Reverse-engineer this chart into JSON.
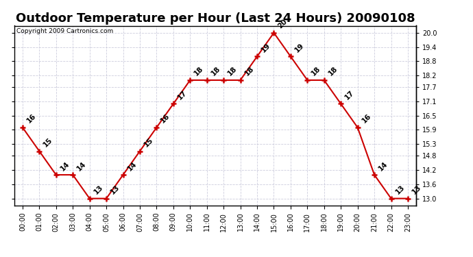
{
  "title": "Outdoor Temperature per Hour (Last 24 Hours) 20090108",
  "copyright": "Copyright 2009 Cartronics.com",
  "hours": [
    "00:00",
    "01:00",
    "02:00",
    "03:00",
    "04:00",
    "05:00",
    "06:00",
    "07:00",
    "08:00",
    "09:00",
    "10:00",
    "11:00",
    "12:00",
    "13:00",
    "14:00",
    "15:00",
    "16:00",
    "17:00",
    "18:00",
    "19:00",
    "20:00",
    "21:00",
    "22:00",
    "23:00"
  ],
  "values": [
    16,
    15,
    14,
    14,
    13,
    13,
    14,
    15,
    16,
    17,
    18,
    18,
    18,
    18,
    19,
    20,
    19,
    18,
    18,
    17,
    16,
    14,
    13,
    13
  ],
  "line_color": "#cc0000",
  "marker_color": "#cc0000",
  "grid_color": "#ccccdd",
  "bg_color": "#ffffff",
  "ylim_min": 12.7,
  "ylim_max": 20.3,
  "yticks": [
    13.0,
    13.6,
    14.2,
    14.8,
    15.3,
    15.9,
    16.5,
    17.1,
    17.7,
    18.2,
    18.8,
    19.4,
    20.0
  ],
  "title_fontsize": 13,
  "label_fontsize": 7,
  "annotation_fontsize": 7.5,
  "copyright_fontsize": 6.5
}
